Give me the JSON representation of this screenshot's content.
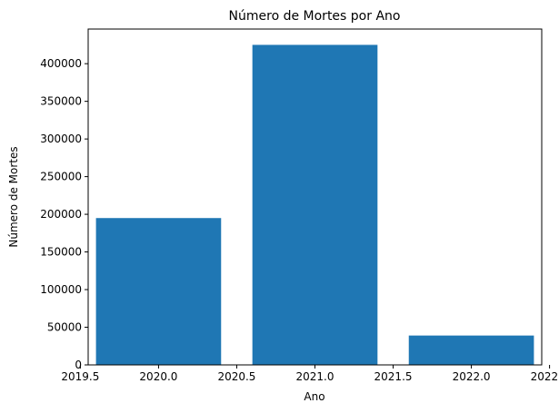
{
  "chart_data": {
    "type": "bar",
    "title": "Número de Mortes por Ano",
    "xlabel": "Ano",
    "ylabel": "Número de Mortes",
    "x": [
      2020,
      2021,
      2022
    ],
    "values": [
      195000,
      425000,
      39000
    ],
    "bar_width": 0.8,
    "xlim": [
      2019.55,
      2022.45
    ],
    "ylim": [
      0,
      446000
    ],
    "xticks": [
      2019.5,
      2020.0,
      2020.5,
      2021.0,
      2021.5,
      2022.0,
      2022.5
    ],
    "xtick_labels": [
      "2019.5",
      "2020.0",
      "2020.5",
      "2021.0",
      "2021.5",
      "2022.0",
      "2022.5"
    ],
    "yticks": [
      0,
      50000,
      100000,
      150000,
      200000,
      250000,
      300000,
      350000,
      400000
    ],
    "ytick_labels": [
      "0",
      "50000",
      "100000",
      "150000",
      "200000",
      "250000",
      "300000",
      "350000",
      "400000"
    ],
    "bar_color": "#1f77b4",
    "grid": false,
    "legend": null
  }
}
